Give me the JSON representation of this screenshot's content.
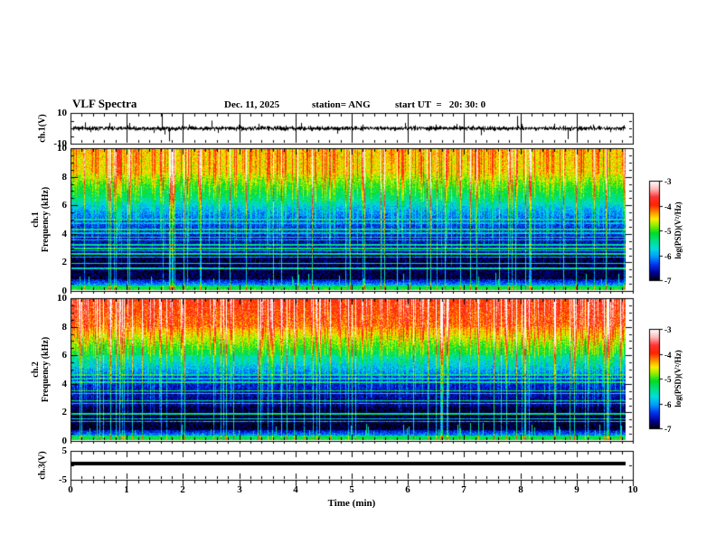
{
  "header": {
    "title": "VLF Spectra",
    "date": "Dec. 11, 2025",
    "station": "station= ANG",
    "start_ut": "start UT  =   20: 30: 0"
  },
  "x_axis": {
    "label": "Time (min)",
    "range_min": [
      0,
      10
    ],
    "major_ticks": [
      0,
      1,
      2,
      3,
      4,
      5,
      6,
      7,
      8,
      9,
      10
    ],
    "minor_per_major": 5,
    "data_end_min": 9.85
  },
  "colorbars": [
    {
      "label": "log(PSD)(V²/Hz)",
      "ticks": [
        -3,
        -4,
        -5,
        -6,
        -7
      ],
      "range": [
        -7,
        -3
      ]
    },
    {
      "label": "log(PSD)(V²/Hz)",
      "ticks": [
        -3,
        -4,
        -5,
        -6,
        -7
      ],
      "range": [
        -7,
        -3
      ]
    }
  ],
  "colormap_stops": [
    [
      0.0,
      "#000000"
    ],
    [
      0.08,
      "#000099"
    ],
    [
      0.16,
      "#0033ee"
    ],
    [
      0.24,
      "#0099ff"
    ],
    [
      0.32,
      "#00dddd"
    ],
    [
      0.4,
      "#00e087"
    ],
    [
      0.48,
      "#00dd22"
    ],
    [
      0.55,
      "#88ee00"
    ],
    [
      0.62,
      "#ffee00"
    ],
    [
      0.68,
      "#ff9900"
    ],
    [
      0.76,
      "#ff2200"
    ],
    [
      0.84,
      "#ff3333"
    ],
    [
      0.92,
      "#ffb8b8"
    ],
    [
      1.0,
      "#ffffff"
    ]
  ],
  "chart_data": [
    {
      "type": "line",
      "title": "ch.1 raw signal",
      "ylabel": "ch.1(V)",
      "ylim": [
        -10,
        10
      ],
      "yticks": [
        10,
        -10
      ],
      "yticks_minor": [
        5,
        0,
        -5
      ],
      "x_range_min": [
        0,
        10
      ],
      "grid_vertical_every_min": 1,
      "baseline_v": 0,
      "noise_band_v": 1.6,
      "seed": 7,
      "spikes": [
        {
          "t": 0.35,
          "v": -2.5
        },
        {
          "t": 1.05,
          "v": 3.5
        },
        {
          "t": 1.48,
          "v": -3.0
        },
        {
          "t": 1.62,
          "v": 9.5
        },
        {
          "t": 1.67,
          "v": -4.0
        },
        {
          "t": 1.75,
          "v": -8.5
        },
        {
          "t": 2.1,
          "v": 2.5
        },
        {
          "t": 2.5,
          "v": 5.0
        },
        {
          "t": 2.62,
          "v": -3.0
        },
        {
          "t": 3.35,
          "v": 3.0
        },
        {
          "t": 4.1,
          "v": 3.5
        },
        {
          "t": 4.75,
          "v": -3.5
        },
        {
          "t": 5.2,
          "v": 2.5
        },
        {
          "t": 5.95,
          "v": 3.5
        },
        {
          "t": 6.5,
          "v": 2.5
        },
        {
          "t": 7.3,
          "v": -4.5
        },
        {
          "t": 7.95,
          "v": 8.0
        },
        {
          "t": 8.6,
          "v": 3.0
        },
        {
          "t": 8.85,
          "v": -7.0
        },
        {
          "t": 9.3,
          "v": 2.5
        },
        {
          "t": 9.6,
          "v": -2.5
        }
      ]
    },
    {
      "type": "heatmap",
      "title": "ch.1 spectrogram",
      "ylabel_lines": [
        "ch.1",
        "Frequency (kHz)"
      ],
      "ylim_khz": [
        0,
        10
      ],
      "yticks": [
        0,
        2,
        4,
        6,
        8,
        10
      ],
      "ytick_minor_step_khz": 0.5,
      "value_scale": "log(PSD)(V²/Hz)",
      "value_range": [
        -7,
        -3
      ],
      "seed": 11,
      "noise_jitter": 0.55,
      "background_bands": [
        [
          10.0,
          8.3,
          -4.55,
          -4.65
        ],
        [
          8.3,
          6.3,
          -4.7,
          -5.6
        ],
        [
          6.3,
          5.0,
          -5.7,
          -6.25
        ],
        [
          5.0,
          3.8,
          -6.3,
          -6.5
        ],
        [
          3.8,
          2.5,
          -6.55,
          -6.7
        ],
        [
          2.5,
          0.75,
          -6.85,
          -6.9
        ],
        [
          0.75,
          0.35,
          -6.6,
          -6.0
        ],
        [
          0.35,
          0.0,
          -5.4,
          -5.0
        ]
      ],
      "tone_lines": [
        {
          "f_khz": 5.0,
          "level": -5.6
        },
        {
          "f_khz": 4.75,
          "level": -5.9
        },
        {
          "f_khz": 4.3,
          "level": -5.4
        },
        {
          "f_khz": 4.05,
          "level": -5.8
        },
        {
          "f_khz": 3.75,
          "level": -5.3
        },
        {
          "f_khz": 3.55,
          "level": -5.7
        },
        {
          "f_khz": 3.2,
          "level": -5.5
        },
        {
          "f_khz": 2.95,
          "level": -5.4
        },
        {
          "f_khz": 2.8,
          "level": -5.8
        },
        {
          "f_khz": 2.55,
          "level": -5.5
        },
        {
          "f_khz": 2.35,
          "level": -5.9
        },
        {
          "f_khz": 1.9,
          "level": -5.5
        },
        {
          "f_khz": 1.55,
          "level": -5.7
        }
      ],
      "sferics": {
        "description": "dense vertical impulsive streaks strongest above 6 kHz",
        "strong_prob": 0.07,
        "medium_prob": 0.28
      }
    },
    {
      "type": "heatmap",
      "title": "ch.2 spectrogram",
      "ylabel_lines": [
        "ch.2",
        "Frequency (kHz)"
      ],
      "ylim_khz": [
        0,
        10
      ],
      "yticks": [
        0,
        2,
        4,
        6,
        8,
        10
      ],
      "ytick_minor_step_khz": 0.5,
      "value_scale": "log(PSD)(V²/Hz)",
      "value_range": [
        -7,
        -3
      ],
      "seed": 22,
      "noise_jitter": 0.55,
      "background_bands": [
        [
          10.0,
          8.0,
          -4.05,
          -4.3
        ],
        [
          8.0,
          6.0,
          -4.4,
          -5.4
        ],
        [
          6.0,
          4.6,
          -5.5,
          -6.2
        ],
        [
          4.6,
          3.4,
          -6.4,
          -6.6
        ],
        [
          3.4,
          2.4,
          -6.65,
          -6.75
        ],
        [
          2.4,
          0.7,
          -6.9,
          -6.95
        ],
        [
          0.7,
          0.35,
          -6.6,
          -6.1
        ],
        [
          0.35,
          0.0,
          -5.4,
          -5.1
        ]
      ],
      "tone_lines": [
        {
          "f_khz": 4.6,
          "level": -5.5
        },
        {
          "f_khz": 4.35,
          "level": -5.8
        },
        {
          "f_khz": 4.1,
          "level": -5.6
        },
        {
          "f_khz": 3.5,
          "level": -5.4
        },
        {
          "f_khz": 3.3,
          "level": -5.7
        },
        {
          "f_khz": 2.8,
          "level": -5.5
        },
        {
          "f_khz": 2.6,
          "level": -5.9
        },
        {
          "f_khz": 1.85,
          "level": -5.5
        },
        {
          "f_khz": 1.5,
          "level": -5.8
        },
        {
          "f_khz": 1.3,
          "level": -6.0
        }
      ],
      "sferics": {
        "description": "dense vertical impulsive streaks, hotter (orange/red) top band than ch.1",
        "strong_prob": 0.09,
        "medium_prob": 0.3
      }
    },
    {
      "type": "line",
      "title": "ch.3 raw signal",
      "ylabel": "ch.3(V)",
      "ylim": [
        -5,
        5
      ],
      "yticks": [
        5,
        -5
      ],
      "yticks_minor": [
        0
      ],
      "constant_v": 0.7,
      "line_thickness_px": 4
    }
  ]
}
